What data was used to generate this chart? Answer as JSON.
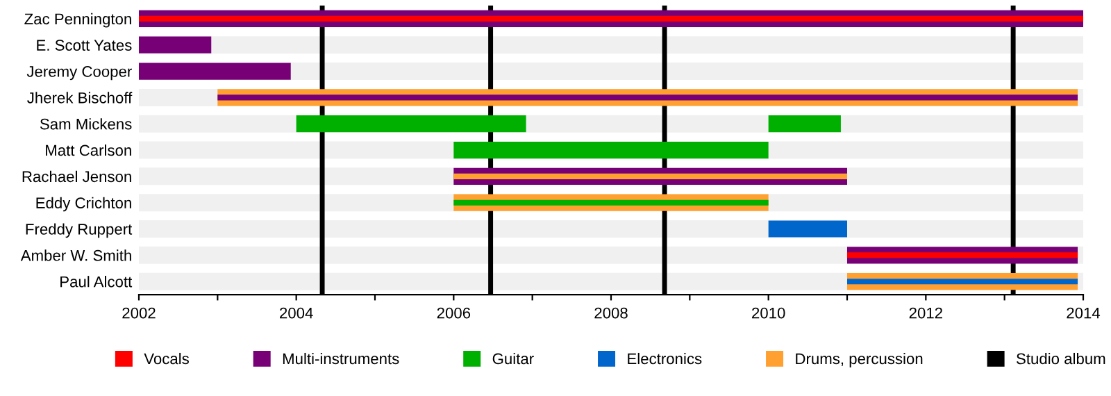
{
  "chart_data": {
    "type": "bar",
    "orientation": "horizontal",
    "categories": [
      "Zac Pennington",
      "E. Scott Yates",
      "Jeremy Cooper",
      "Jherek Bischoff",
      "Sam Mickens",
      "Matt Carlson",
      "Rachael Jenson",
      "Eddy Crichton",
      "Freddy Ruppert",
      "Amber W. Smith",
      "Paul Alcott"
    ],
    "series": [
      {
        "name": "Vocals",
        "color": "#ff0000",
        "base": [
          2002,
          null,
          null,
          null,
          null,
          null,
          null,
          null,
          null,
          2011,
          null
        ],
        "values": [
          12,
          null,
          null,
          null,
          null,
          null,
          null,
          null,
          null,
          2.93,
          null
        ]
      },
      {
        "color": "#ffa030",
        "base": [
          null,
          null,
          null,
          null,
          null,
          null,
          2006,
          null,
          null,
          null,
          null
        ],
        "values": [
          null,
          null,
          null,
          null,
          null,
          null,
          5,
          null,
          null,
          null,
          null
        ]
      },
      {
        "color": "#00b000",
        "base": [
          null,
          null,
          null,
          null,
          2010,
          null,
          null,
          null,
          null,
          null,
          null
        ],
        "values": [
          null,
          null,
          null,
          null,
          0.92,
          null,
          null,
          null,
          null,
          null,
          null
        ]
      },
      {
        "name": "Multi-instruments",
        "color": "#770077",
        "base": [
          2002,
          2002,
          2002,
          2003,
          null,
          null,
          2006,
          null,
          null,
          2011,
          null
        ],
        "values": [
          12,
          0.92,
          1.93,
          10.93,
          null,
          null,
          5,
          null,
          null,
          2.93,
          null
        ]
      },
      {
        "name": "Guitar",
        "color": "#00b000",
        "base": [
          null,
          null,
          null,
          null,
          2004,
          2006,
          null,
          2006,
          null,
          null,
          null
        ],
        "values": [
          null,
          null,
          null,
          null,
          2.92,
          4,
          null,
          4,
          null,
          null,
          null
        ]
      },
      {
        "name": "Electronics",
        "color": "#0066cc",
        "base": [
          null,
          null,
          null,
          null,
          null,
          null,
          null,
          null,
          2010,
          null,
          2011
        ],
        "values": [
          null,
          null,
          null,
          null,
          null,
          null,
          null,
          null,
          1,
          null,
          2.93
        ]
      },
      {
        "name": "Drums, percussion",
        "color": "#ffa030",
        "base": [
          null,
          null,
          null,
          2003,
          null,
          null,
          null,
          2006,
          null,
          null,
          2011
        ],
        "values": [
          null,
          null,
          null,
          10.93,
          null,
          null,
          null,
          4,
          null,
          null,
          2.93
        ]
      }
    ],
    "ref_lines": [
      {
        "axis": "x",
        "value": 2004.33,
        "label": "Studio album",
        "color": "#000000"
      },
      {
        "axis": "x",
        "value": 2006.47,
        "color": "#000000"
      },
      {
        "axis": "x",
        "value": 2008.68,
        "color": "#000000"
      },
      {
        "axis": "x",
        "value": 2013.11,
        "color": "#000000"
      }
    ],
    "xlim": [
      2002,
      2014
    ],
    "xticks": [
      2002,
      {
        "value": 2003,
        "label": null
      },
      2004,
      {
        "value": 2005,
        "label": null
      },
      2006,
      {
        "value": 2007,
        "label": null
      },
      2008,
      {
        "value": 2009,
        "label": null
      },
      2010,
      {
        "value": 2011,
        "label": null
      },
      2012,
      {
        "value": 2013,
        "label": null
      },
      2014
    ],
    "grid": "y",
    "legend": "bottom"
  }
}
